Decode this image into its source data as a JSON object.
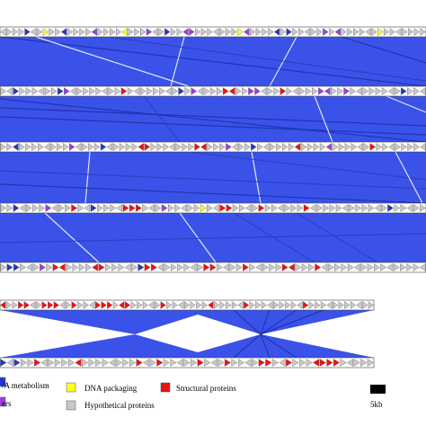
{
  "colors": {
    "synteny": "#3a52e8",
    "track_bg": "#ffffff",
    "track_border": "#444444",
    "dna_metabolism": "#2339c9",
    "dna_packaging": "#ffff22",
    "structural": "#ee1111",
    "hypothetical": "#c9c9c9",
    "others": "#9b3fe0",
    "scale": "#000000"
  },
  "genome_tracks": [
    {
      "id": "g1",
      "pattern": "HHHHDHHPHHDHHHHOHHHHPHHHOHHDHHOOHHHHHHHPOHHHHDHDHHHHHOHOHHHHHHPHHHHHHH"
    },
    {
      "id": "g2",
      "pattern": "HHDHHHHHHDOHHHHHHHHSHHHHHHHHDHOHHHHSSHHOOHHHSHHHHHOOHHOHHHHHHHHDHHH"
    },
    {
      "id": "g3",
      "pattern": "HHDHHHHHHHHOHHHHDHHHHHSSHHHHHHHSSHHHOHHHDHHHHHHSHHHHOHHHHHHSHHHHHHHH"
    },
    {
      "id": "g4",
      "pattern": "HHDHHHHOHHHSHHDHHHHSSSHHHOHHHHHPHHSSHHHHSHHHHHHSHHHHHHHHHHHHDHHHHH"
    },
    {
      "id": "g5",
      "pattern": "HDDHHHOHSSHHHHSSHHHHHDSSHHHHHHHSSHHHHSHHHHHSSHHHSHHHHHHHHHHHHHHHH"
    },
    {
      "id": "g6",
      "pattern": "SHHSSHHSSSHHSHHHSSSHSSHHHHHSHHHHHHHSHHHHHSHHHHHHHHHSHHHHHHHHHHH"
    },
    {
      "id": "g7",
      "pattern": "DHDHHSHHHHHSHHHHHHHHSHHSHHHHHSHHHSHHHHSSHHSHHHSSSSHHHHH"
    }
  ],
  "legend": [
    {
      "key": "dna_metabolism",
      "label": "/A metabolism"
    },
    {
      "key": "dna_packaging",
      "label": "DNA packaging"
    },
    {
      "key": "structural",
      "label": "Structural proteins"
    },
    {
      "key": "others",
      "label": "ers"
    },
    {
      "key": "hypothetical",
      "label": "Hypothetical proteins"
    }
  ],
  "scale_bar": {
    "label": "5kb"
  }
}
